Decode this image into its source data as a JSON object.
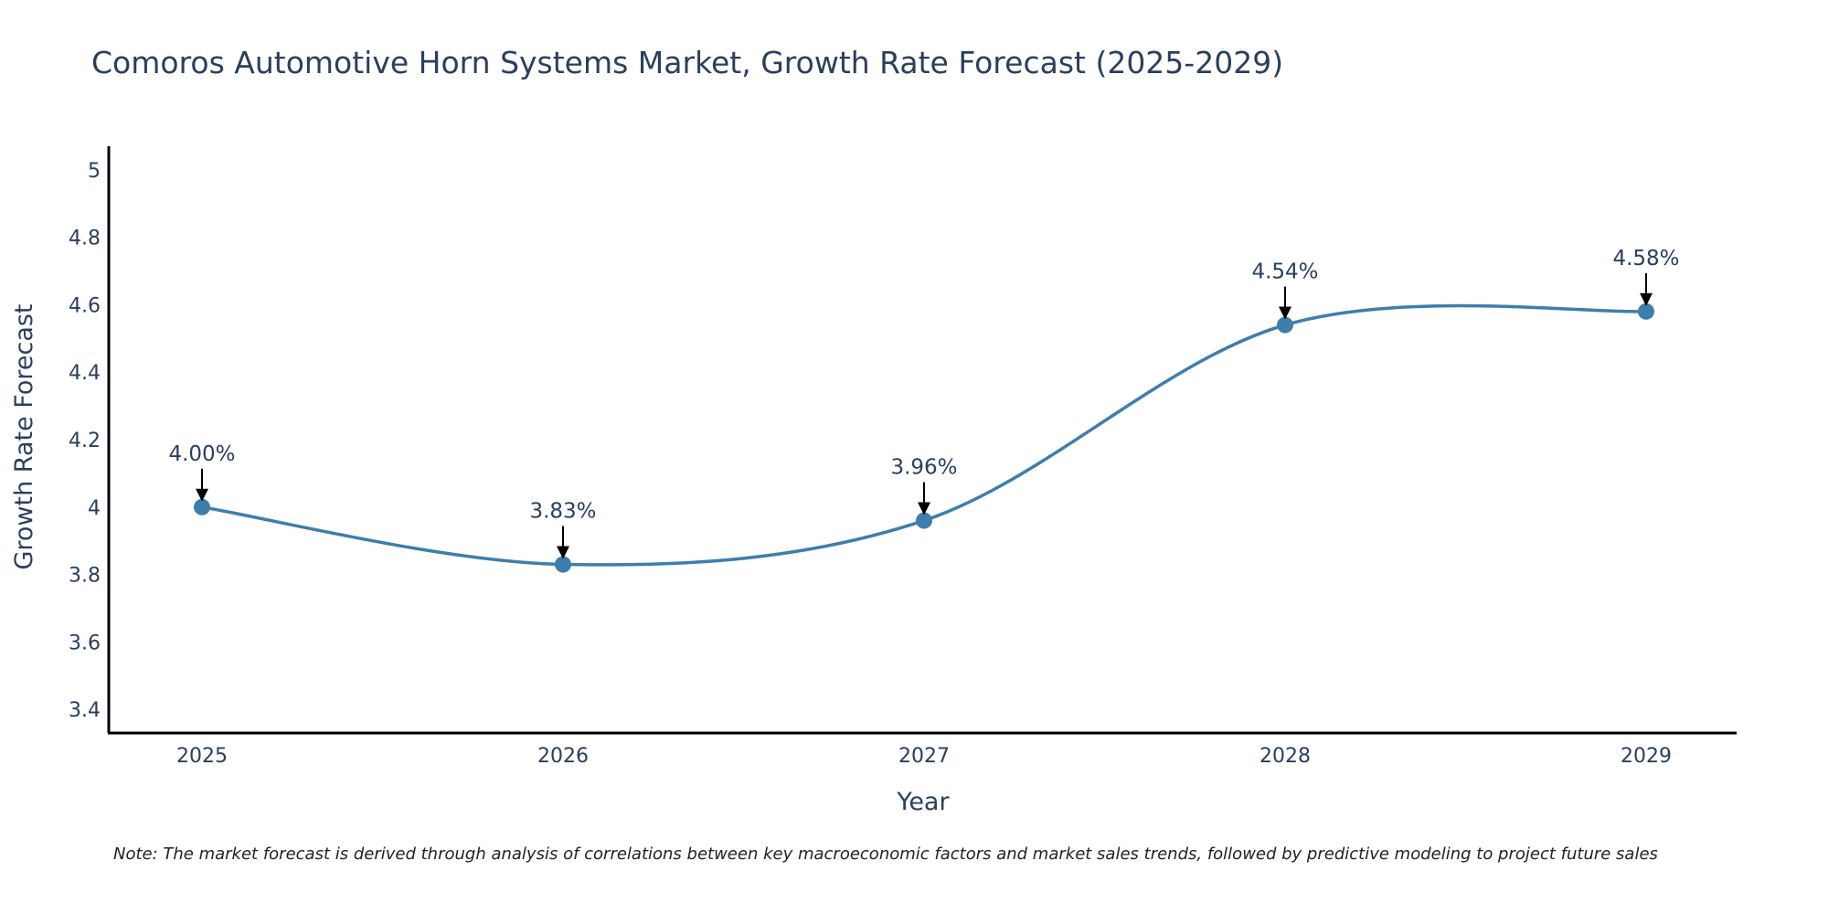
{
  "chart_data": {
    "type": "line",
    "title": "Comoros Automotive Horn Systems Market, Growth Rate Forecast (2025-2029)",
    "xlabel": "Year",
    "ylabel": "Growth Rate Forecast",
    "categories": [
      "2025",
      "2026",
      "2027",
      "2028",
      "2029"
    ],
    "series": [
      {
        "name": "Growth Rate Forecast",
        "values": [
          4.0,
          3.83,
          3.96,
          4.54,
          4.58
        ],
        "labels": [
          "4.00%",
          "3.83%",
          "3.96%",
          "4.54%",
          "4.58%"
        ]
      }
    ],
    "ylim": [
      3.33,
      5.07
    ],
    "yticks": [
      3.4,
      3.6,
      3.8,
      4,
      4.2,
      4.4,
      4.6,
      4.8,
      5
    ],
    "ytick_labels": [
      "3.4",
      "3.6",
      "3.8",
      "4",
      "4.2",
      "4.4",
      "4.6",
      "4.8",
      "5"
    ],
    "grid": false,
    "line_shape": "spline",
    "note": "Note: The market forecast is derived through analysis of correlations between key macroeconomic factors and market sales trends, followed by predictive modeling to project future sales",
    "colors": {
      "line": "#3d7eac",
      "marker": "#3d7eac",
      "text": "#2a3f5f",
      "axis": "#000000",
      "arrow": "#000000"
    }
  }
}
